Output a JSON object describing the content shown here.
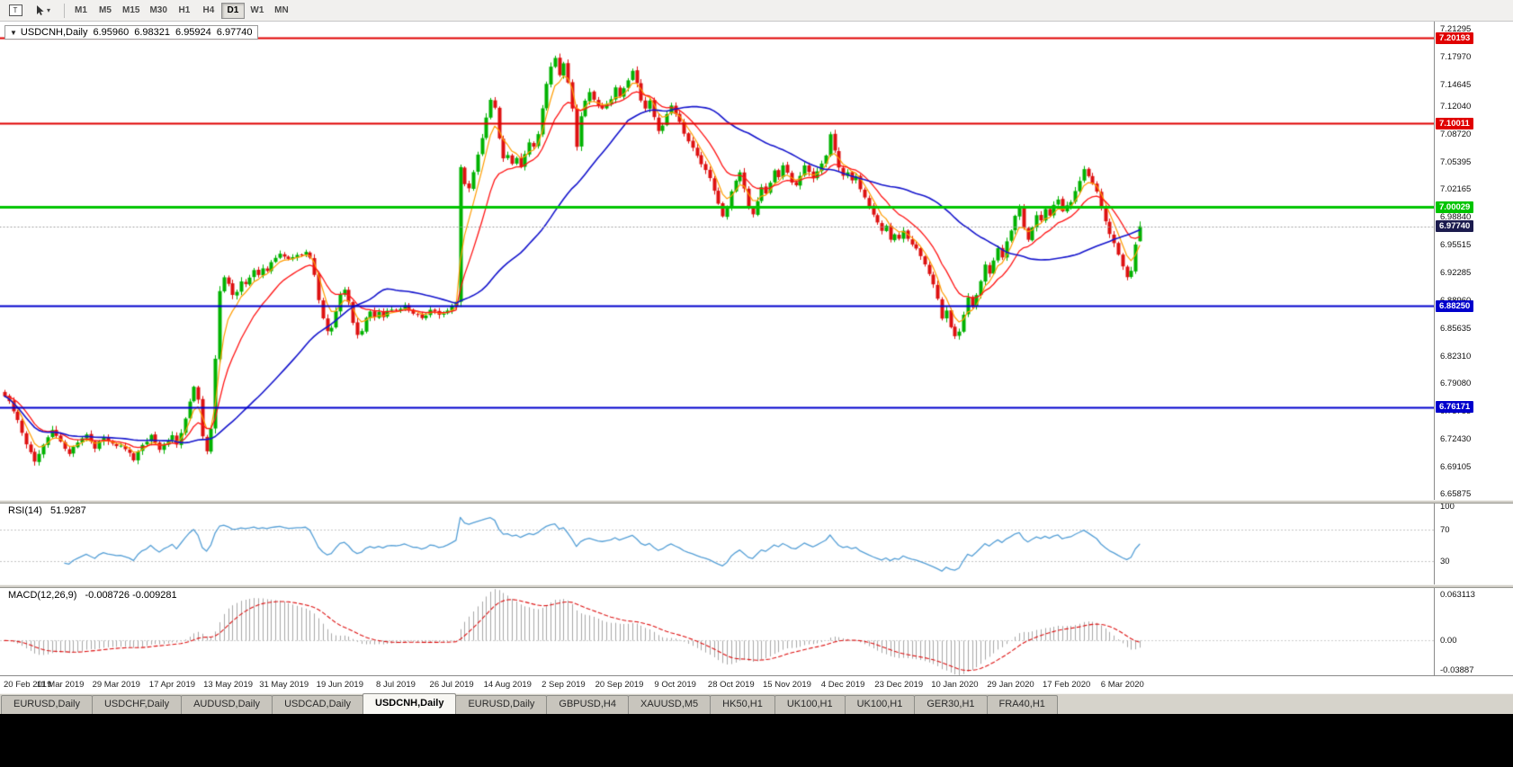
{
  "toolbar": {
    "icons": [
      "chart-window",
      "cursor-tool"
    ],
    "timeframes": [
      "M1",
      "M5",
      "M15",
      "M30",
      "H1",
      "H4",
      "D1",
      "W1",
      "MN"
    ],
    "active_timeframe": "D1"
  },
  "chart": {
    "header": {
      "collapse_icon": "▼",
      "symbol": "USDCNH,Daily",
      "open": "6.95960",
      "high": "6.98321",
      "low": "6.95924",
      "close": "6.97740"
    },
    "price_axis_labels": [
      "7.21295",
      "7.17970",
      "7.14645",
      "7.12040",
      "7.08720",
      "7.05395",
      "7.02165",
      "6.98840",
      "6.95515",
      "6.92285",
      "6.88960",
      "6.85635",
      "6.82310",
      "6.79080",
      "6.75755",
      "6.72430",
      "6.69105",
      "6.65875"
    ],
    "date_labels": [
      "20 Feb 2019",
      "11 Mar 2019",
      "29 Mar 2019",
      "17 Apr 2019",
      "13 May 2019",
      "31 May 2019",
      "19 Jun 2019",
      "8 Jul 2019",
      "26 Jul 2019",
      "14 Aug 2019",
      "2 Sep 2019",
      "20 Sep 2019",
      "9 Oct 2019",
      "28 Oct 2019",
      "15 Nov 2019",
      "4 Dec 2019",
      "23 Dec 2019",
      "10 Jan 2020",
      "29 Jan 2020",
      "17 Feb 2020",
      "6 Mar 2020"
    ]
  },
  "rsi": {
    "label": "RSI(14)",
    "value": "51.9287",
    "axis_labels": [
      "100",
      "70",
      "30"
    ]
  },
  "macd": {
    "label": "MACD(12,26,9)",
    "value": "-0.008726 -0.009281",
    "axis_labels": [
      "0.063113",
      "0.00",
      "-0.03887"
    ]
  },
  "tabs": {
    "items": [
      "EURUSD,Daily",
      "USDCHF,Daily",
      "AUDUSD,Daily",
      "USDCAD,Daily",
      "USDCNH,Daily",
      "EURUSD,Daily",
      "GBPUSD,H4",
      "XAUUSD,M5",
      "HK50,H1",
      "UK100,H1",
      "UK100,H1",
      "GER30,H1",
      "FRA40,H1"
    ],
    "active_index": 4
  },
  "chart_data": {
    "type": "candlestick",
    "symbol": "USDCNH",
    "timeframe": "Daily",
    "bar_count": 265,
    "label_every_bars": 13,
    "price_range": {
      "min": 6.65875,
      "max": 7.21295
    },
    "last_bar": {
      "open": 6.9596,
      "high": 6.98321,
      "low": 6.95924,
      "close": 6.9774
    },
    "current_price": {
      "price": 6.9774,
      "label": "6.97740",
      "badge_color": "#1b1b4e",
      "line_color": "#9a9a9a"
    },
    "levels": [
      {
        "price": 7.20193,
        "label": "7.20193",
        "color": "#e00000",
        "width": 2
      },
      {
        "price": 7.10011,
        "label": "7.10011",
        "color": "#e00000",
        "width": 2
      },
      {
        "price": 7.00029,
        "label": "7.00029",
        "color": "#00c400",
        "width": 3
      },
      {
        "price": 6.8825,
        "label": "6.88250",
        "color": "#0000cc",
        "width": 2
      },
      {
        "price": 6.76171,
        "label": "6.76171",
        "color": "#0000cc",
        "width": 2
      }
    ],
    "colors": {
      "bull": "#00b200",
      "bear": "#dd1111"
    },
    "moving_averages": [
      {
        "period": 5,
        "type": "ema",
        "color": "#ff9c00",
        "width": 1.2
      },
      {
        "period": 13,
        "type": "ema",
        "color": "#ff1414",
        "width": 1.3
      },
      {
        "period": 40,
        "type": "sma",
        "color": "#1414cc",
        "width": 1.6
      }
    ],
    "indicators": {
      "rsi": {
        "period": 14,
        "current": 51.9287,
        "guide_levels": [
          70,
          30
        ],
        "range": [
          0,
          100
        ],
        "color": "#559fd6"
      },
      "macd": {
        "fast": 12,
        "slow": 26,
        "signal": 9,
        "current_macd": -0.008726,
        "current_signal": -0.009281,
        "axis_min": -0.03887,
        "axis_max": 0.063113,
        "hist_color": "#a6a6a6",
        "signal_color": "#dd1111"
      }
    },
    "close_anchors": [
      [
        0,
        6.775
      ],
      [
        1,
        6.768
      ],
      [
        3,
        6.746
      ],
      [
        5,
        6.718
      ],
      [
        7,
        6.696
      ],
      [
        9,
        6.716
      ],
      [
        11,
        6.734
      ],
      [
        13,
        6.72
      ],
      [
        15,
        6.707
      ],
      [
        17,
        6.72
      ],
      [
        19,
        6.73
      ],
      [
        21,
        6.712
      ],
      [
        23,
        6.726
      ],
      [
        26,
        6.716
      ],
      [
        28,
        6.712
      ],
      [
        30,
        6.699
      ],
      [
        32,
        6.716
      ],
      [
        34,
        6.728
      ],
      [
        36,
        6.71
      ],
      [
        38,
        6.722
      ],
      [
        39,
        6.728
      ],
      [
        40,
        6.718
      ],
      [
        41,
        6.732
      ],
      [
        42,
        6.748
      ],
      [
        43,
        6.768
      ],
      [
        44,
        6.786
      ],
      [
        45,
        6.77
      ],
      [
        46,
        6.728
      ],
      [
        47,
        6.71
      ],
      [
        48,
        6.736
      ],
      [
        49,
        6.82
      ],
      [
        50,
        6.9
      ],
      [
        51,
        6.916
      ],
      [
        52,
        6.908
      ],
      [
        53,
        6.896
      ],
      [
        54,
        6.9
      ],
      [
        55,
        6.912
      ],
      [
        56,
        6.908
      ],
      [
        57,
        6.916
      ],
      [
        58,
        6.925
      ],
      [
        59,
        6.92
      ],
      [
        60,
        6.928
      ],
      [
        61,
        6.924
      ],
      [
        62,
        6.934
      ],
      [
        63,
        6.94
      ],
      [
        64,
        6.945
      ],
      [
        66,
        6.938
      ],
      [
        68,
        6.944
      ],
      [
        70,
        6.946
      ],
      [
        71,
        6.94
      ],
      [
        72,
        6.92
      ],
      [
        73,
        6.89
      ],
      [
        74,
        6.868
      ],
      [
        75,
        6.852
      ],
      [
        76,
        6.856
      ],
      [
        77,
        6.876
      ],
      [
        78,
        6.896
      ],
      [
        79,
        6.902
      ],
      [
        80,
        6.888
      ],
      [
        81,
        6.862
      ],
      [
        82,
        6.848
      ],
      [
        83,
        6.852
      ],
      [
        84,
        6.868
      ],
      [
        85,
        6.876
      ],
      [
        86,
        6.87
      ],
      [
        87,
        6.876
      ],
      [
        88,
        6.87
      ],
      [
        89,
        6.877
      ],
      [
        91,
        6.878
      ],
      [
        93,
        6.884
      ],
      [
        95,
        6.874
      ],
      [
        97,
        6.868
      ],
      [
        99,
        6.878
      ],
      [
        101,
        6.872
      ],
      [
        103,
        6.877
      ],
      [
        105,
        6.888
      ],
      [
        106,
        7.048
      ],
      [
        107,
        7.028
      ],
      [
        108,
        7.022
      ],
      [
        109,
        7.042
      ],
      [
        110,
        7.062
      ],
      [
        111,
        7.082
      ],
      [
        112,
        7.108
      ],
      [
        113,
        7.128
      ],
      [
        114,
        7.118
      ],
      [
        115,
        7.082
      ],
      [
        116,
        7.058
      ],
      [
        117,
        7.062
      ],
      [
        118,
        7.052
      ],
      [
        119,
        7.058
      ],
      [
        120,
        7.048
      ],
      [
        121,
        7.064
      ],
      [
        122,
        7.078
      ],
      [
        123,
        7.072
      ],
      [
        124,
        7.088
      ],
      [
        125,
        7.118
      ],
      [
        126,
        7.148
      ],
      [
        127,
        7.168
      ],
      [
        128,
        7.178
      ],
      [
        129,
        7.158
      ],
      [
        130,
        7.172
      ],
      [
        131,
        7.148
      ],
      [
        132,
        7.118
      ],
      [
        133,
        7.072
      ],
      [
        134,
        7.108
      ],
      [
        135,
        7.128
      ],
      [
        136,
        7.138
      ],
      [
        137,
        7.128
      ],
      [
        139,
        7.118
      ],
      [
        141,
        7.128
      ],
      [
        142,
        7.142
      ],
      [
        143,
        7.132
      ],
      [
        144,
        7.142
      ],
      [
        145,
        7.152
      ],
      [
        146,
        7.162
      ],
      [
        147,
        7.148
      ],
      [
        148,
        7.128
      ],
      [
        149,
        7.118
      ],
      [
        150,
        7.128
      ],
      [
        151,
        7.108
      ],
      [
        152,
        7.092
      ],
      [
        153,
        7.098
      ],
      [
        154,
        7.112
      ],
      [
        155,
        7.122
      ],
      [
        156,
        7.112
      ],
      [
        158,
        7.088
      ],
      [
        160,
        7.072
      ],
      [
        161,
        7.062
      ],
      [
        162,
        7.052
      ],
      [
        163,
        7.044
      ],
      [
        164,
        7.034
      ],
      [
        165,
        7.019
      ],
      [
        166,
        7.004
      ],
      [
        167,
        6.989
      ],
      [
        168,
        6.999
      ],
      [
        169,
        7.019
      ],
      [
        170,
        7.032
      ],
      [
        171,
        7.042
      ],
      [
        172,
        7.022
      ],
      [
        173,
        6.998
      ],
      [
        174,
        6.992
      ],
      [
        175,
        7.008
      ],
      [
        176,
        7.024
      ],
      [
        177,
        7.016
      ],
      [
        178,
        7.03
      ],
      [
        179,
        7.044
      ],
      [
        180,
        7.036
      ],
      [
        181,
        7.05
      ],
      [
        182,
        7.042
      ],
      [
        183,
        7.03
      ],
      [
        184,
        7.026
      ],
      [
        185,
        7.038
      ],
      [
        186,
        7.05
      ],
      [
        187,
        7.042
      ],
      [
        188,
        7.034
      ],
      [
        189,
        7.042
      ],
      [
        190,
        7.052
      ],
      [
        191,
        7.062
      ],
      [
        192,
        7.088
      ],
      [
        193,
        7.068
      ],
      [
        194,
        7.048
      ],
      [
        195,
        7.038
      ],
      [
        196,
        7.042
      ],
      [
        197,
        7.032
      ],
      [
        198,
        7.036
      ],
      [
        199,
        7.022
      ],
      [
        200,
        7.012
      ],
      [
        201,
        7.002
      ],
      [
        202,
        6.992
      ],
      [
        203,
        6.982
      ],
      [
        204,
        6.972
      ],
      [
        205,
        6.978
      ],
      [
        206,
        6.962
      ],
      [
        207,
        6.968
      ],
      [
        208,
        6.962
      ],
      [
        209,
        6.972
      ],
      [
        210,
        6.962
      ],
      [
        211,
        6.956
      ],
      [
        212,
        6.95
      ],
      [
        213,
        6.942
      ],
      [
        214,
        6.932
      ],
      [
        215,
        6.92
      ],
      [
        216,
        6.908
      ],
      [
        217,
        6.892
      ],
      [
        218,
        6.868
      ],
      [
        219,
        6.878
      ],
      [
        220,
        6.858
      ],
      [
        221,
        6.846
      ],
      [
        222,
        6.852
      ],
      [
        223,
        6.872
      ],
      [
        224,
        6.892
      ],
      [
        225,
        6.882
      ],
      [
        226,
        6.896
      ],
      [
        227,
        6.912
      ],
      [
        228,
        6.932
      ],
      [
        229,
        6.92
      ],
      [
        230,
        6.936
      ],
      [
        231,
        6.952
      ],
      [
        232,
        6.94
      ],
      [
        233,
        6.96
      ],
      [
        234,
        6.972
      ],
      [
        235,
        6.99
      ],
      [
        236,
        7.0
      ],
      [
        237,
        6.976
      ],
      [
        238,
        6.962
      ],
      [
        239,
        6.976
      ],
      [
        240,
        6.99
      ],
      [
        241,
        6.984
      ],
      [
        242,
        6.998
      ],
      [
        243,
        6.99
      ],
      [
        244,
        7.004
      ],
      [
        245,
        7.01
      ],
      [
        246,
        6.996
      ],
      [
        247,
        7.002
      ],
      [
        248,
        7.006
      ],
      [
        249,
        7.02
      ],
      [
        250,
        7.032
      ],
      [
        251,
        7.046
      ],
      [
        252,
        7.038
      ],
      [
        253,
        7.028
      ],
      [
        254,
        7.018
      ],
      [
        255,
        6.998
      ],
      [
        256,
        6.984
      ],
      [
        257,
        6.968
      ],
      [
        258,
        6.958
      ],
      [
        259,
        6.944
      ],
      [
        260,
        6.93
      ],
      [
        261,
        6.916
      ],
      [
        262,
        6.924
      ],
      [
        263,
        6.956
      ],
      [
        264,
        6.9774
      ]
    ]
  }
}
